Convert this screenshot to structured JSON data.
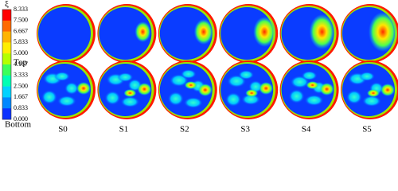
{
  "colorbar": {
    "title": "ξ",
    "ticks": [
      "8.333",
      "7.500",
      "6.667",
      "5.833",
      "5.000",
      "4.167",
      "3.333",
      "2.500",
      "1.667",
      "0.833",
      "0.000"
    ]
  },
  "rows": [
    "Top",
    "Bottom"
  ],
  "columns": [
    "S0",
    "S1",
    "S2",
    "S3",
    "S4",
    "S5"
  ]
}
